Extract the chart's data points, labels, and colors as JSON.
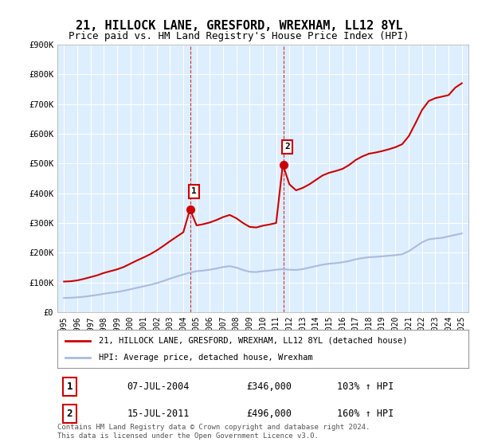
{
  "title": "21, HILLOCK LANE, GRESFORD, WREXHAM, LL12 8YL",
  "subtitle": "Price paid vs. HM Land Registry's House Price Index (HPI)",
  "title_fontsize": 11,
  "subtitle_fontsize": 9,
  "xlabel": "",
  "ylabel": "",
  "ylim": [
    0,
    900000
  ],
  "yticks": [
    0,
    100000,
    200000,
    300000,
    400000,
    500000,
    600000,
    700000,
    800000,
    900000
  ],
  "ytick_labels": [
    "£0",
    "£100K",
    "£200K",
    "£300K",
    "£400K",
    "£500K",
    "£600K",
    "£700K",
    "£800K",
    "£900K"
  ],
  "background_color": "#ffffff",
  "plot_bg_color": "#ddeeff",
  "grid_color": "#ffffff",
  "sale1_date": 2004.52,
  "sale1_price": 346000,
  "sale1_label": "07-JUL-2004",
  "sale1_price_label": "£346,000",
  "sale1_hpi_label": "103% ↑ HPI",
  "sale2_date": 2011.54,
  "sale2_price": 496000,
  "sale2_label": "15-JUL-2011",
  "sale2_price_label": "£496,000",
  "sale2_hpi_label": "160% ↑ HPI",
  "hpi_line_color": "#aabbdd",
  "price_line_color": "#cc0000",
  "sale_marker_color": "#cc0000",
  "sale_dashed_color": "#cc0000",
  "legend1_text": "21, HILLOCK LANE, GRESFORD, WREXHAM, LL12 8YL (detached house)",
  "legend2_text": "HPI: Average price, detached house, Wrexham",
  "footer_text": "Contains HM Land Registry data © Crown copyright and database right 2024.\nThis data is licensed under the Open Government Licence v3.0.",
  "hpi_data_x": [
    1995,
    1995.5,
    1996,
    1996.5,
    1997,
    1997.5,
    1998,
    1998.5,
    1999,
    1999.5,
    2000,
    2000.5,
    2001,
    2001.5,
    2002,
    2002.5,
    2003,
    2003.5,
    2004,
    2004.5,
    2005,
    2005.5,
    2006,
    2006.5,
    2007,
    2007.5,
    2008,
    2008.5,
    2009,
    2009.5,
    2010,
    2010.5,
    2011,
    2011.5,
    2012,
    2012.5,
    2013,
    2013.5,
    2014,
    2014.5,
    2015,
    2015.5,
    2016,
    2016.5,
    2017,
    2017.5,
    2018,
    2018.5,
    2019,
    2019.5,
    2020,
    2020.5,
    2021,
    2021.5,
    2022,
    2022.5,
    2023,
    2023.5,
    2024,
    2024.5,
    2025
  ],
  "hpi_data_y": [
    48000,
    48500,
    50000,
    52000,
    55000,
    58000,
    62000,
    65000,
    68000,
    72000,
    77000,
    82000,
    87000,
    92000,
    98000,
    105000,
    113000,
    120000,
    127000,
    133000,
    138000,
    140000,
    143000,
    147000,
    152000,
    155000,
    150000,
    142000,
    136000,
    135000,
    138000,
    140000,
    143000,
    145000,
    143000,
    142000,
    145000,
    150000,
    155000,
    160000,
    163000,
    165000,
    168000,
    172000,
    178000,
    182000,
    185000,
    186000,
    188000,
    190000,
    192000,
    195000,
    205000,
    220000,
    235000,
    245000,
    248000,
    250000,
    255000,
    260000,
    265000
  ],
  "price_data_x": [
    1995,
    1995.5,
    1996,
    1996.5,
    1997,
    1997.5,
    1998,
    1998.5,
    1999,
    1999.5,
    2000,
    2000.5,
    2001,
    2001.5,
    2002,
    2002.5,
    2003,
    2003.5,
    2004,
    2004.5,
    2005,
    2005.5,
    2006,
    2006.5,
    2007,
    2007.5,
    2008,
    2008.5,
    2009,
    2009.5,
    2010,
    2010.5,
    2011,
    2011.5,
    2012,
    2012.5,
    2013,
    2013.5,
    2014,
    2014.5,
    2015,
    2015.5,
    2016,
    2016.5,
    2017,
    2017.5,
    2018,
    2018.5,
    2019,
    2019.5,
    2020,
    2020.5,
    2021,
    2021.5,
    2022,
    2022.5,
    2023,
    2023.5,
    2024,
    2024.5,
    2025
  ],
  "price_data_y": [
    103000,
    104000,
    107000,
    112000,
    118000,
    124000,
    132000,
    138000,
    144000,
    152000,
    163000,
    174000,
    184000,
    195000,
    208000,
    223000,
    239000,
    254000,
    269000,
    346000,
    292000,
    296000,
    302000,
    310000,
    320000,
    327000,
    316000,
    300000,
    287000,
    285000,
    291000,
    295000,
    300000,
    496000,
    430000,
    410000,
    418000,
    430000,
    445000,
    460000,
    469000,
    475000,
    482000,
    495000,
    512000,
    524000,
    533000,
    537000,
    542000,
    548000,
    555000,
    565000,
    592000,
    635000,
    680000,
    710000,
    720000,
    725000,
    730000,
    755000,
    770000
  ],
  "xtick_years": [
    1995,
    1996,
    1997,
    1998,
    1999,
    2000,
    2001,
    2002,
    2003,
    2004,
    2005,
    2006,
    2007,
    2008,
    2009,
    2010,
    2011,
    2012,
    2013,
    2014,
    2015,
    2016,
    2017,
    2018,
    2019,
    2020,
    2021,
    2022,
    2023,
    2024,
    2025
  ]
}
